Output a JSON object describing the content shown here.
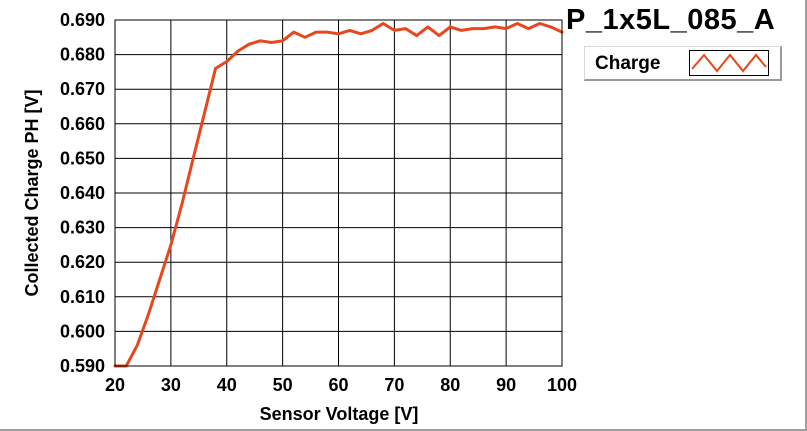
{
  "chart_data": {
    "type": "line",
    "title": "P_1x5L_085_A",
    "xlabel": "Sensor Voltage [V]",
    "ylabel": "Collected Charge PH [V]",
    "xlim": [
      20,
      100
    ],
    "ylim": [
      0.59,
      0.69
    ],
    "grid": true,
    "legend": "top-right",
    "x_ticks": [
      "20",
      "30",
      "40",
      "50",
      "60",
      "70",
      "80",
      "90",
      "100"
    ],
    "y_ticks": [
      "0.590",
      "0.600",
      "0.610",
      "0.620",
      "0.630",
      "0.640",
      "0.650",
      "0.660",
      "0.670",
      "0.680",
      "0.690"
    ],
    "series": [
      {
        "name": "Charge",
        "color": "#e8461c",
        "x": [
          20,
          22,
          24,
          26,
          28,
          30,
          32,
          34,
          36,
          38,
          40,
          42,
          44,
          46,
          48,
          50,
          52,
          54,
          56,
          58,
          60,
          62,
          64,
          66,
          68,
          70,
          72,
          74,
          76,
          78,
          80,
          82,
          84,
          86,
          88,
          90,
          92,
          94,
          96,
          98,
          100
        ],
        "values": [
          0.59,
          0.59,
          0.596,
          0.605,
          0.615,
          0.625,
          0.637,
          0.65,
          0.663,
          0.676,
          0.678,
          0.681,
          0.683,
          0.684,
          0.6835,
          0.684,
          0.6865,
          0.685,
          0.6865,
          0.6865,
          0.686,
          0.687,
          0.686,
          0.687,
          0.689,
          0.687,
          0.6875,
          0.6855,
          0.688,
          0.6855,
          0.688,
          0.687,
          0.6875,
          0.6875,
          0.688,
          0.6875,
          0.689,
          0.6875,
          0.689,
          0.688,
          0.6865
        ]
      }
    ]
  }
}
